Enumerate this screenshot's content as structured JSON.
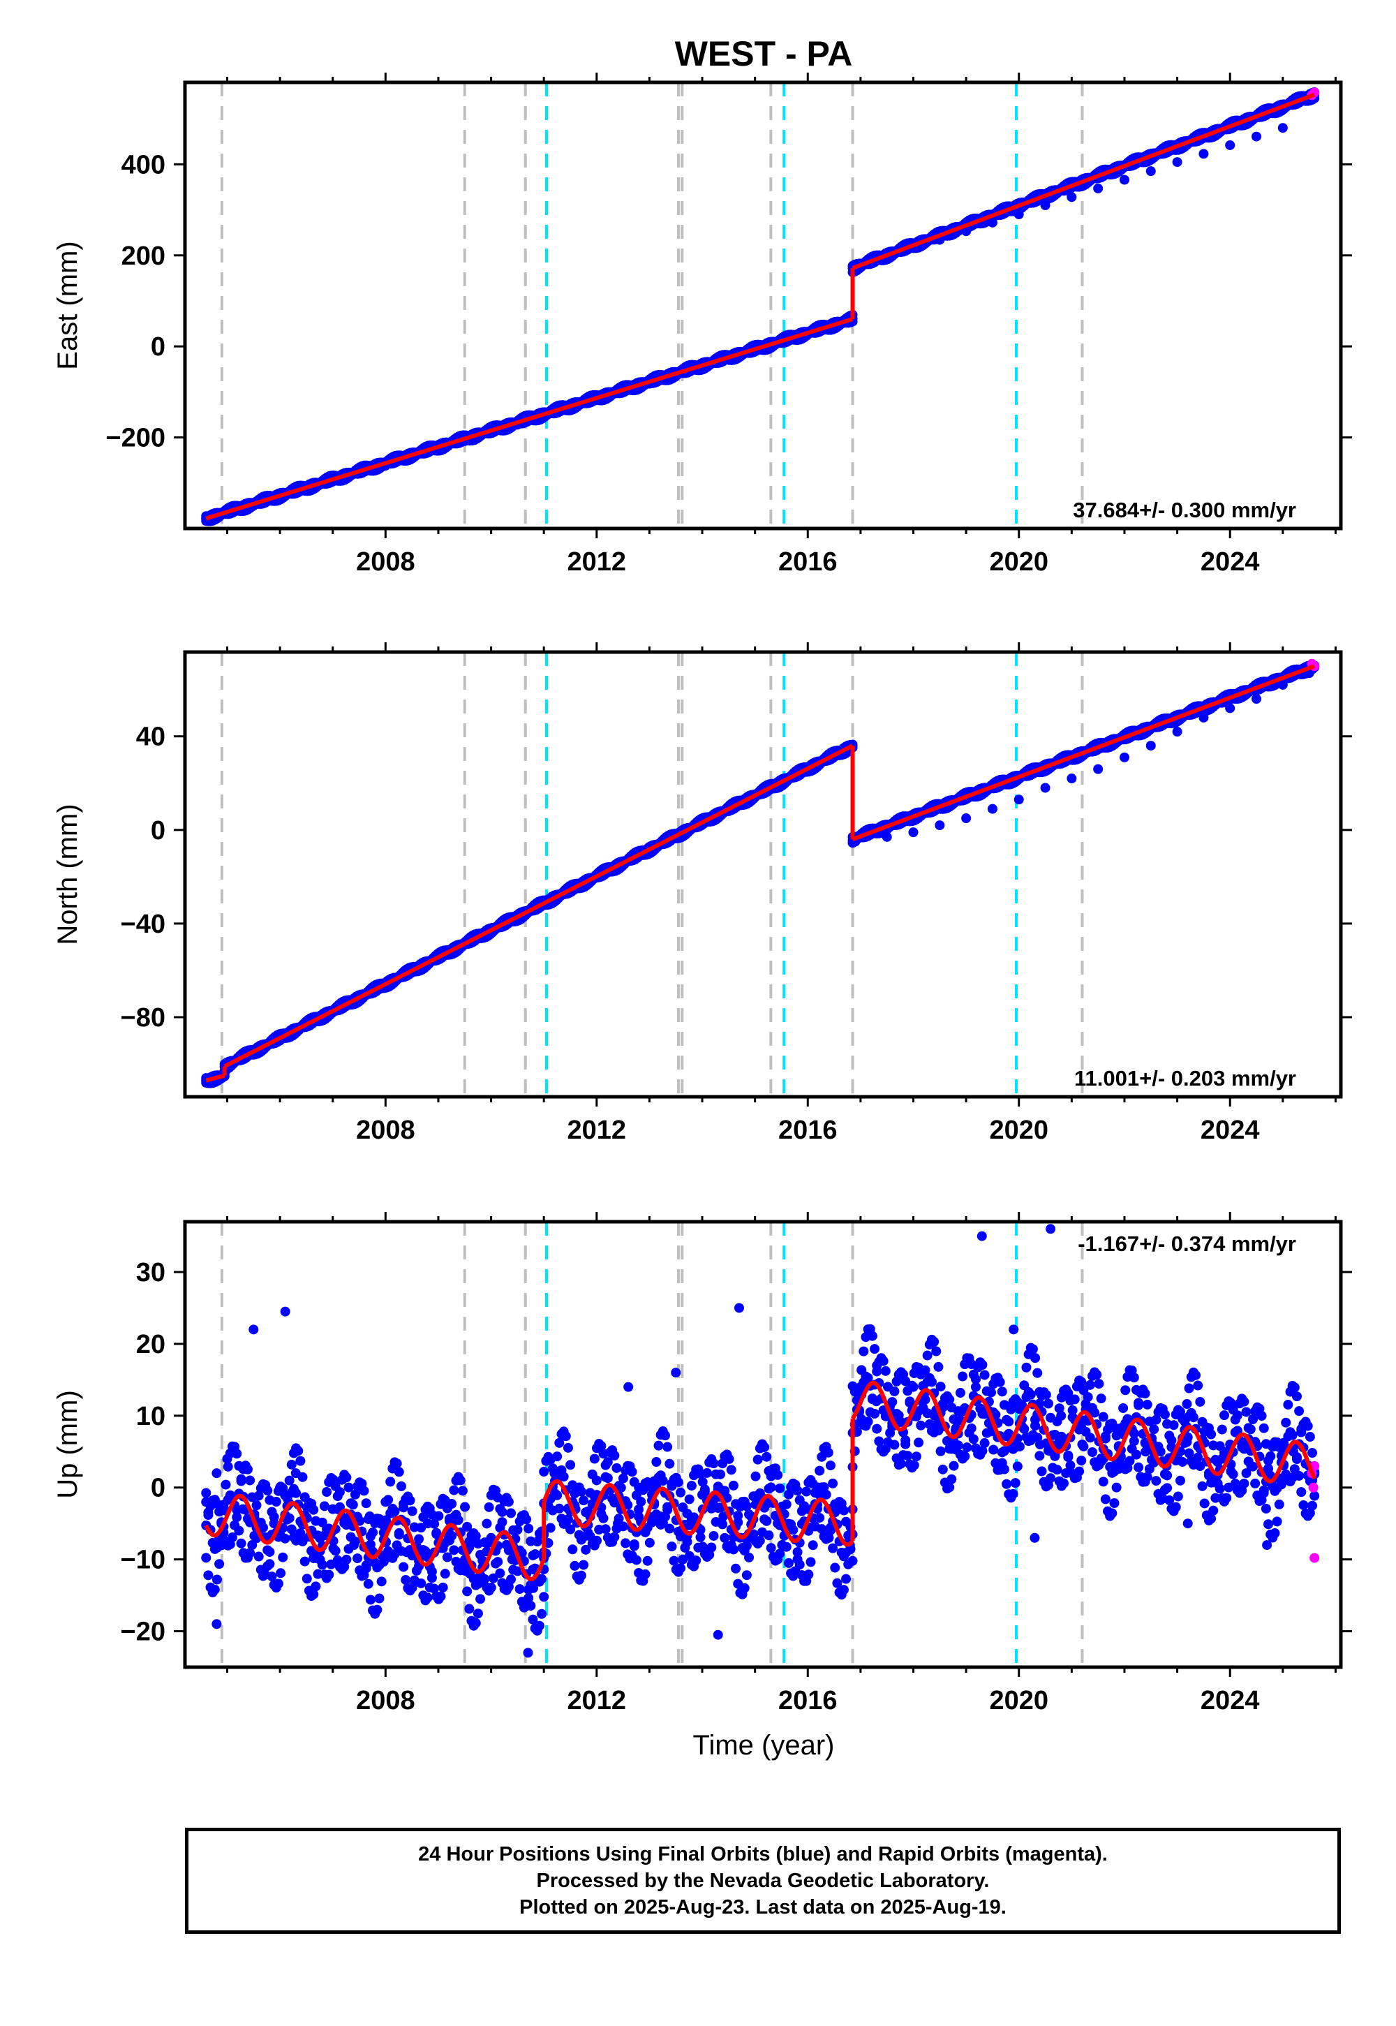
{
  "title": "WEST - PA",
  "xlabel": "Time (year)",
  "colors": {
    "final_orbits": "#0000ff",
    "rapid_orbits": "#ff00ff",
    "model": "#ff0000",
    "equipment_change": "#bfbfbf",
    "earthquake": "#00e5ff"
  },
  "footer": {
    "line1": "24 Hour Positions Using Final Orbits (blue) and Rapid Orbits (magenta).",
    "line2": "Processed by the Nevada Geodetic Laboratory.",
    "line3": "Plotted on 2025-Aug-23. Last data on 2025-Aug-19."
  },
  "chart_data": [
    {
      "type": "scatter",
      "title": "WEST - PA",
      "ylabel": "East (mm)",
      "xlim": [
        2004.2,
        2026.1
      ],
      "ylim": [
        -400,
        580
      ],
      "xticks": [
        2008,
        2012,
        2016,
        2020,
        2024
      ],
      "yticks": [
        -200,
        0,
        200,
        400
      ],
      "grid": false,
      "rate_label": "37.684+/- 0.300 mm/yr",
      "gray_lines": [
        2004.9,
        2009.5,
        2010.65,
        2013.55,
        2013.62,
        2015.3,
        2016.85,
        2021.2
      ],
      "cyan_lines": [
        2011.05,
        2015.55,
        2019.95
      ],
      "model": {
        "segments": [
          {
            "x": [
              2004.6,
              2016.85
            ],
            "y": [
              -378,
              60
            ]
          },
          {
            "x": [
              2016.85,
              2025.6
            ],
            "y": [
              172,
              553
            ]
          }
        ]
      },
      "final_points": [
        [
          2004.6,
          -378
        ],
        [
          2005.0,
          -368
        ],
        [
          2005.5,
          -350
        ],
        [
          2006.0,
          -333
        ],
        [
          2006.5,
          -315
        ],
        [
          2007.0,
          -297
        ],
        [
          2007.5,
          -279
        ],
        [
          2008.0,
          -262
        ],
        [
          2008.5,
          -244
        ],
        [
          2009.0,
          -226
        ],
        [
          2009.5,
          -208
        ],
        [
          2010.0,
          -190
        ],
        [
          2010.5,
          -172
        ],
        [
          2011.0,
          -153
        ],
        [
          2011.5,
          -136
        ],
        [
          2012.0,
          -118
        ],
        [
          2012.5,
          -100
        ],
        [
          2013.0,
          -82
        ],
        [
          2013.5,
          -64
        ],
        [
          2014.0,
          -46
        ],
        [
          2014.5,
          -28
        ],
        [
          2015.0,
          -10
        ],
        [
          2015.5,
          8
        ],
        [
          2016.0,
          27
        ],
        [
          2016.5,
          45
        ],
        [
          2016.84,
          60
        ],
        [
          2016.9,
          174
        ],
        [
          2017.5,
          197
        ],
        [
          2018.0,
          216
        ],
        [
          2018.5,
          234
        ],
        [
          2019.0,
          253
        ],
        [
          2019.5,
          272
        ],
        [
          2020.0,
          290
        ],
        [
          2020.5,
          310
        ],
        [
          2021.0,
          328
        ],
        [
          2021.5,
          347
        ],
        [
          2022.0,
          366
        ],
        [
          2022.5,
          385
        ],
        [
          2023.0,
          405
        ],
        [
          2023.5,
          423
        ],
        [
          2024.0,
          442
        ],
        [
          2024.5,
          461
        ],
        [
          2025.0,
          480
        ],
        [
          2025.5,
          545
        ]
      ],
      "rapid_points": [
        [
          2025.55,
          552
        ],
        [
          2025.6,
          558
        ]
      ]
    },
    {
      "type": "scatter",
      "ylabel": "North (mm)",
      "xlim": [
        2004.2,
        2026.1
      ],
      "ylim": [
        -114,
        76
      ],
      "xticks": [
        2008,
        2012,
        2016,
        2020,
        2024
      ],
      "yticks": [
        -80,
        -40,
        0,
        40
      ],
      "grid": false,
      "rate_label": "11.001+/- 0.203 mm/yr",
      "gray_lines": [
        2004.9,
        2009.5,
        2010.65,
        2013.55,
        2013.62,
        2015.3,
        2016.85,
        2021.2
      ],
      "cyan_lines": [
        2011.05,
        2015.55,
        2019.95
      ],
      "model": {
        "segments": [
          {
            "x": [
              2004.6,
              2004.95
            ],
            "y": [
              -107,
              -105
            ]
          },
          {
            "x": [
              2004.95,
              2016.85
            ],
            "y": [
              -101,
              36
            ]
          },
          {
            "x": [
              2016.85,
              2025.6
            ],
            "y": [
              -4,
              70
            ]
          }
        ]
      },
      "final_points": [
        [
          2004.6,
          -107
        ],
        [
          2004.9,
          -106
        ],
        [
          2005.0,
          -101
        ],
        [
          2005.5,
          -95
        ],
        [
          2006.0,
          -90
        ],
        [
          2006.5,
          -84
        ],
        [
          2007.0,
          -78
        ],
        [
          2007.5,
          -72
        ],
        [
          2008.0,
          -67
        ],
        [
          2008.5,
          -61
        ],
        [
          2009.0,
          -55
        ],
        [
          2009.5,
          -48
        ],
        [
          2010.0,
          -43
        ],
        [
          2010.5,
          -38
        ],
        [
          2011.0,
          -32
        ],
        [
          2011.5,
          -26
        ],
        [
          2012.0,
          -20
        ],
        [
          2012.5,
          -14
        ],
        [
          2013.0,
          -9
        ],
        [
          2013.5,
          -3
        ],
        [
          2014.0,
          3
        ],
        [
          2014.5,
          8
        ],
        [
          2015.0,
          14
        ],
        [
          2015.5,
          20
        ],
        [
          2016.0,
          26
        ],
        [
          2016.5,
          32
        ],
        [
          2016.84,
          36
        ],
        [
          2016.9,
          -5
        ],
        [
          2017.5,
          -3
        ],
        [
          2018.0,
          -1
        ],
        [
          2018.5,
          2
        ],
        [
          2019.0,
          5
        ],
        [
          2019.5,
          9
        ],
        [
          2020.0,
          13
        ],
        [
          2020.5,
          18
        ],
        [
          2021.0,
          22
        ],
        [
          2021.5,
          26
        ],
        [
          2022.0,
          31
        ],
        [
          2022.5,
          36
        ],
        [
          2023.0,
          42
        ],
        [
          2023.5,
          48
        ],
        [
          2024.0,
          52
        ],
        [
          2024.5,
          56
        ],
        [
          2025.0,
          62
        ],
        [
          2025.5,
          67
        ]
      ],
      "rapid_points": [
        [
          2025.55,
          71
        ],
        [
          2025.6,
          70
        ]
      ]
    },
    {
      "type": "scatter",
      "ylabel": "Up (mm)",
      "xlabel": "Time (year)",
      "xlim": [
        2004.2,
        2026.1
      ],
      "ylim": [
        -25,
        37
      ],
      "xticks": [
        2008,
        2012,
        2016,
        2020,
        2024
      ],
      "yticks": [
        -20,
        -10,
        0,
        10,
        20,
        30
      ],
      "grid": false,
      "rate_label": "-1.167+/- 0.374 mm/yr",
      "gray_lines": [
        2004.9,
        2009.5,
        2010.65,
        2013.55,
        2013.62,
        2015.3,
        2016.85,
        2021.2
      ],
      "cyan_lines": [
        2011.05,
        2015.55,
        2019.95
      ],
      "model": {
        "segments": [
          {
            "x": [
              2004.6,
              2011.0
            ],
            "y": [
              -3.5,
              -10
            ]
          },
          {
            "x": [
              2011.0,
              2016.85
            ],
            "y": [
              -2,
              -5
            ]
          },
          {
            "x": [
              2016.85,
              2025.6
            ],
            "y": [
              12,
              3
            ]
          }
        ],
        "seasonal_amplitude_mm": 3
      },
      "final_points": [
        [
          2004.6,
          -2
        ],
        [
          2004.8,
          2
        ],
        [
          2005.0,
          4
        ],
        [
          2005.3,
          -3
        ],
        [
          2005.6,
          -6
        ],
        [
          2006.0,
          0
        ],
        [
          2006.3,
          2
        ],
        [
          2006.6,
          -6
        ],
        [
          2007.0,
          -3
        ],
        [
          2007.4,
          -8
        ],
        [
          2007.7,
          -4
        ],
        [
          2008.0,
          -2
        ],
        [
          2008.4,
          -9
        ],
        [
          2008.8,
          -5
        ],
        [
          2009.2,
          -7
        ],
        [
          2009.6,
          -12
        ],
        [
          2010.0,
          -7
        ],
        [
          2010.4,
          -10
        ],
        [
          2010.8,
          -14
        ],
        [
          2011.0,
          -9
        ],
        [
          2011.2,
          2
        ],
        [
          2011.6,
          -3
        ],
        [
          2012.0,
          1
        ],
        [
          2012.4,
          -5
        ],
        [
          2012.8,
          0
        ],
        [
          2013.2,
          -4
        ],
        [
          2013.6,
          -6
        ],
        [
          2014.0,
          -1
        ],
        [
          2014.4,
          -4
        ],
        [
          2014.8,
          -7
        ],
        [
          2015.2,
          -2
        ],
        [
          2015.6,
          -6
        ],
        [
          2016.0,
          -3
        ],
        [
          2016.4,
          -7
        ],
        [
          2016.8,
          -8
        ],
        [
          2017.0,
          14
        ],
        [
          2017.3,
          12
        ],
        [
          2017.7,
          9
        ],
        [
          2018.0,
          14
        ],
        [
          2018.4,
          10
        ],
        [
          2018.8,
          8
        ],
        [
          2019.2,
          12
        ],
        [
          2019.6,
          7
        ],
        [
          2020.0,
          11
        ],
        [
          2020.4,
          6
        ],
        [
          2020.8,
          10
        ],
        [
          2021.2,
          6
        ],
        [
          2021.6,
          4
        ],
        [
          2022.0,
          8
        ],
        [
          2022.4,
          5
        ],
        [
          2022.8,
          3
        ],
        [
          2023.2,
          7
        ],
        [
          2023.6,
          2
        ],
        [
          2024.0,
          6
        ],
        [
          2024.4,
          3
        ],
        [
          2024.8,
          1
        ],
        [
          2025.2,
          5
        ],
        [
          2025.5,
          3
        ],
        [
          2005.5,
          22
        ],
        [
          2006.1,
          24.5
        ],
        [
          2012.6,
          14
        ],
        [
          2013.5,
          16
        ],
        [
          2014.7,
          25
        ],
        [
          2019.3,
          35
        ],
        [
          2020.6,
          36
        ],
        [
          2019.9,
          22
        ],
        [
          2004.8,
          -19
        ],
        [
          2014.3,
          -20.5
        ],
        [
          2010.7,
          -23
        ],
        [
          2020.3,
          -7
        ],
        [
          2023.2,
          -5
        ],
        [
          2024.7,
          -8
        ]
      ],
      "rapid_points": [
        [
          2025.55,
          2
        ],
        [
          2025.58,
          0
        ],
        [
          2025.6,
          3
        ],
        [
          2025.6,
          -9.8
        ]
      ]
    }
  ]
}
